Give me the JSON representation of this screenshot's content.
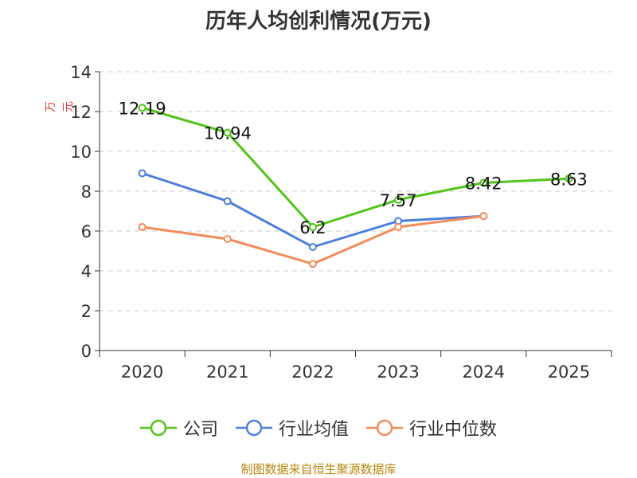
{
  "chart_data": {
    "type": "line",
    "title": "历年人均创利情况(万元)",
    "ylabel": "万元",
    "xlabel": "",
    "categories": [
      "2020",
      "2021",
      "2022",
      "2023",
      "2024",
      "2025"
    ],
    "ylim": [
      0,
      14
    ],
    "yticks": [
      0,
      2,
      4,
      6,
      8,
      10,
      12,
      14
    ],
    "grid": true,
    "legend_position": "bottom",
    "series": [
      {
        "name": "公司",
        "color": "#52c41a",
        "values": [
          12.19,
          10.94,
          6.2,
          7.57,
          8.42,
          8.63
        ],
        "labels": [
          "12.19",
          "10.94",
          "6.2",
          "7.57",
          "8.42",
          "8.63"
        ]
      },
      {
        "name": "行业均值",
        "color": "#4a7fdc",
        "values": [
          8.9,
          7.5,
          5.2,
          6.5,
          6.75,
          null
        ]
      },
      {
        "name": "行业中位数",
        "color": "#f28c5a",
        "values": [
          6.2,
          5.6,
          4.35,
          6.2,
          6.75,
          null
        ]
      }
    ]
  },
  "source_text": "制图数据来自恒生聚源数据库"
}
